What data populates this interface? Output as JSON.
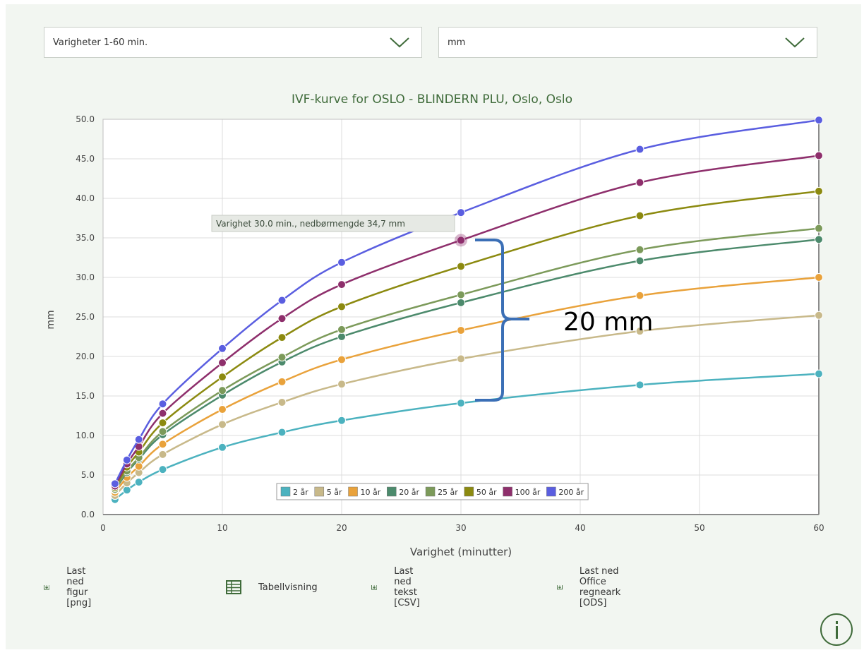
{
  "controls": {
    "duration_select": "Varigheter 1-60 min.",
    "unit_select": "mm"
  },
  "chart_data": {
    "type": "line",
    "title": "IVF-kurve for OSLO - BLINDERN PLU, Oslo, Oslo",
    "xlabel": "Varighet (minutter)",
    "ylabel": "mm",
    "xlim": [
      0,
      60
    ],
    "ylim": [
      0,
      50
    ],
    "x_ticks": [
      0,
      10,
      20,
      30,
      40,
      50,
      60
    ],
    "y_ticks": [
      "0.0",
      "5.0",
      "10.0",
      "15.0",
      "20.0",
      "25.0",
      "30.0",
      "35.0",
      "40.0",
      "45.0",
      "50.0"
    ],
    "grid": true,
    "legend_position": "bottom-center",
    "x": [
      1,
      2,
      3,
      5,
      10,
      15,
      20,
      30,
      45,
      60
    ],
    "series": [
      {
        "name": "2 år",
        "color": "#4cb2bf",
        "values": [
          1.9,
          3.1,
          4.1,
          5.7,
          8.5,
          10.4,
          11.9,
          14.1,
          16.4,
          17.8
        ]
      },
      {
        "name": "5 år",
        "color": "#c8b98a",
        "values": [
          2.4,
          4.0,
          5.3,
          7.6,
          11.4,
          14.2,
          16.5,
          19.7,
          23.2,
          25.2
        ]
      },
      {
        "name": "10 år",
        "color": "#e9a23b",
        "values": [
          2.8,
          4.7,
          6.1,
          8.9,
          13.3,
          16.8,
          19.6,
          23.3,
          27.7,
          30.0
        ]
      },
      {
        "name": "20 år",
        "color": "#4c8a6c",
        "values": [
          3.1,
          5.3,
          7.0,
          10.1,
          15.1,
          19.3,
          22.5,
          26.8,
          32.1,
          34.8
        ]
      },
      {
        "name": "25 år",
        "color": "#7c9a5a",
        "values": [
          3.2,
          5.5,
          7.2,
          10.5,
          15.7,
          19.9,
          23.4,
          27.8,
          33.5,
          36.2
        ]
      },
      {
        "name": "50 år",
        "color": "#8c8a10",
        "values": [
          3.4,
          6.0,
          7.9,
          11.6,
          17.4,
          22.4,
          26.3,
          31.4,
          37.8,
          40.9
        ]
      },
      {
        "name": "100 år",
        "color": "#8e2f6c",
        "values": [
          3.6,
          6.4,
          8.6,
          12.8,
          19.2,
          24.8,
          29.1,
          34.7,
          42.0,
          45.4
        ]
      },
      {
        "name": "200 år",
        "color": "#5a5ee0",
        "values": [
          3.9,
          6.9,
          9.5,
          14.0,
          21.0,
          27.1,
          31.9,
          38.2,
          46.2,
          49.9
        ]
      }
    ],
    "tooltip": "Varighet 30.0 min., nedbørmengde 34,7 mm",
    "annotation": "20 mm"
  },
  "toolbar": {
    "download_png": "Last ned figur [png]",
    "table_view": "Tabellvisning",
    "download_csv": "Last ned tekst [CSV]",
    "download_ods": "Last ned Office regneark [ODS]"
  },
  "colors": {
    "panel_bg": "#f2f6f1",
    "accent_green": "#3f6b3a",
    "title_green": "#3f6b3a",
    "brace_blue": "#3b6fb6"
  }
}
